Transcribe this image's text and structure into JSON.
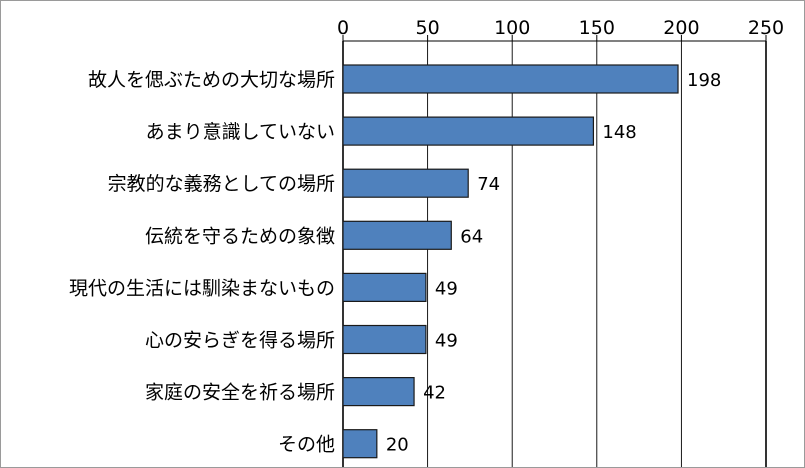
{
  "chart_data": {
    "type": "bar",
    "orientation": "horizontal",
    "title": "",
    "xlabel": "",
    "ylabel": "",
    "categories": [
      "故人を偲ぶための大切な場所",
      "あまり意識していない",
      "宗教的な義務としての場所",
      "伝統を守るための象徴",
      "現代の生活には馴染まないもの",
      "心の安らぎを得る場所",
      "家庭の安全を祈る場所",
      "その他"
    ],
    "values": [
      198,
      148,
      74,
      64,
      49,
      49,
      42,
      20
    ],
    "xlim": [
      0,
      250
    ],
    "xticks": [
      0,
      50,
      100,
      150,
      200,
      250
    ],
    "grid": "vertical",
    "axis_position": "top",
    "data_labels": true,
    "colors": {
      "bar_fill": "#4f81bd",
      "bar_stroke": "#1a1a1a",
      "grid": "#000000"
    }
  }
}
